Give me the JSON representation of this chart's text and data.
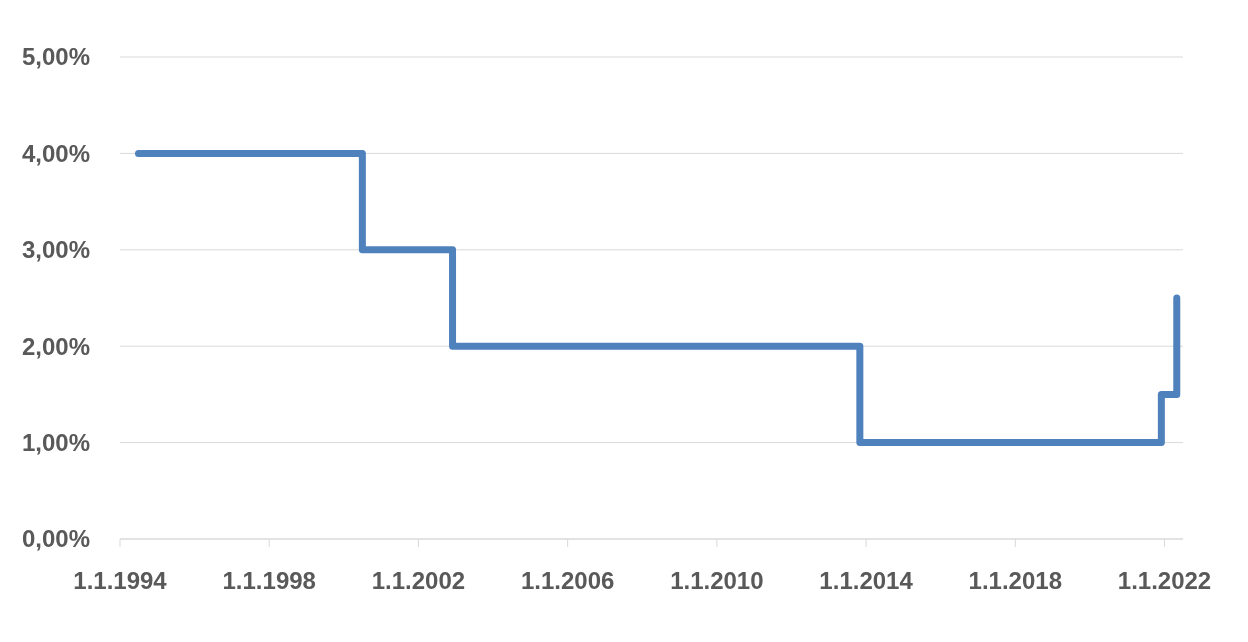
{
  "chart_data": {
    "type": "step",
    "x": [
      "1994-07",
      "2000-07",
      "2002-12",
      "2013-11",
      "2021-12",
      "2022-05"
    ],
    "series": [
      {
        "color": "#4f81bd",
        "values": [
          4,
          3,
          2,
          1,
          1.5,
          2.5
        ]
      }
    ],
    "xlim": [
      "1994-01-01",
      "2022-07-01"
    ],
    "xticks": [
      {
        "value": "1994-01-01",
        "label": "1.1.1994"
      },
      {
        "value": "1998-01-01",
        "label": "1.1.1998"
      },
      {
        "value": "2002-01-01",
        "label": "1.1.2002"
      },
      {
        "value": "2006-01-01",
        "label": "1.1.2006"
      },
      {
        "value": "2010-01-01",
        "label": "1.1.2010"
      },
      {
        "value": "2014-01-01",
        "label": "1.1.2014"
      },
      {
        "value": "2018-01-01",
        "label": "1.1.2018"
      },
      {
        "value": "2022-01-01",
        "label": "1.1.2022"
      }
    ],
    "ylim": [
      0,
      5
    ],
    "yticks": [
      {
        "value": 0,
        "label": "0,00%"
      },
      {
        "value": 1,
        "label": "1,00%"
      },
      {
        "value": 2,
        "label": "2,00%"
      },
      {
        "value": 3,
        "label": "3,00%"
      },
      {
        "value": 4,
        "label": "4,00%"
      },
      {
        "value": 5,
        "label": "5,00%"
      }
    ],
    "grid": "y",
    "marker": "none",
    "line_style": "solid"
  }
}
